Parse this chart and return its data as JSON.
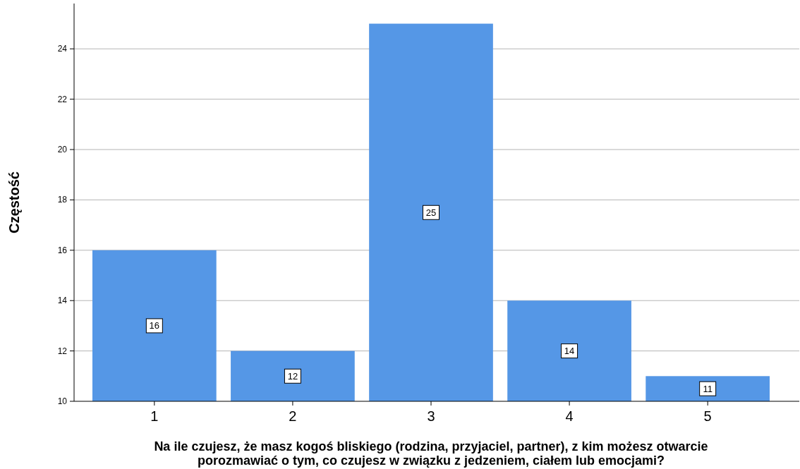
{
  "chart_data": {
    "type": "bar",
    "xlabel": "Na ile czujesz, że masz kogoś bliskiego (rodzina, przyjaciel, partner), z kim możesz otwarcie\nporozmawiać o tym, co czujesz w związku z jedzeniem, ciałem lub emocjami?",
    "ylabel": "Częstość",
    "categories": [
      "1",
      "2",
      "3",
      "4",
      "5"
    ],
    "values": [
      16,
      12,
      25,
      14,
      11
    ],
    "color": "#5597e6",
    "ylim": [
      10,
      25.8
    ],
    "yticks": [
      10,
      12,
      14,
      16,
      18,
      20,
      22,
      24
    ],
    "grid": "y",
    "data_labels": true
  }
}
